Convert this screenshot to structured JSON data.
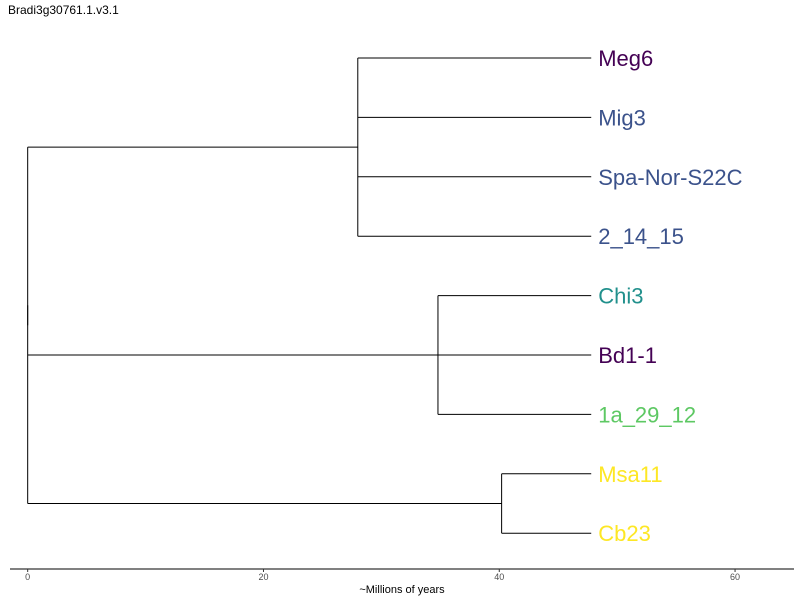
{
  "page": {
    "title": "Bradi3g30761.1.v3.1"
  },
  "chart_data": {
    "type": "tree",
    "title": "Bradi3g30761.1.v3.1",
    "xlabel": "~Millions of years",
    "xlim": [
      -1.5,
      65
    ],
    "x_ticks": [
      0,
      20,
      40,
      60
    ],
    "tips": [
      {
        "name": "Meg6",
        "color": "#440154"
      },
      {
        "name": "Mig3",
        "color": "#3B528B"
      },
      {
        "name": "Spa-Nor-S22C",
        "color": "#3B528B"
      },
      {
        "name": "2_14_15",
        "color": "#3B528B"
      },
      {
        "name": "Chi3",
        "color": "#21908C"
      },
      {
        "name": "Bd1-1",
        "color": "#440154"
      },
      {
        "name": "1a_29_12",
        "color": "#5DC863"
      },
      {
        "name": "Msa11",
        "color": "#FDE725"
      },
      {
        "name": "Cb23",
        "color": "#FDE725"
      }
    ],
    "tip_age": 47.8,
    "nodes": [
      {
        "id": "root",
        "age": 0,
        "children": [
          "n1",
          "n2",
          "n3"
        ]
      },
      {
        "id": "n1",
        "age": 28.0,
        "children": [
          "Meg6",
          "Mig3",
          "Spa-Nor-S22C",
          "2_14_15"
        ]
      },
      {
        "id": "n2",
        "age": 34.8,
        "children": [
          "Chi3",
          "Bd1-1",
          "1a_29_12"
        ]
      },
      {
        "id": "n3",
        "age": 40.2,
        "children": [
          "Msa11",
          "Cb23"
        ]
      }
    ],
    "line_color": "#000000",
    "grid": false
  }
}
